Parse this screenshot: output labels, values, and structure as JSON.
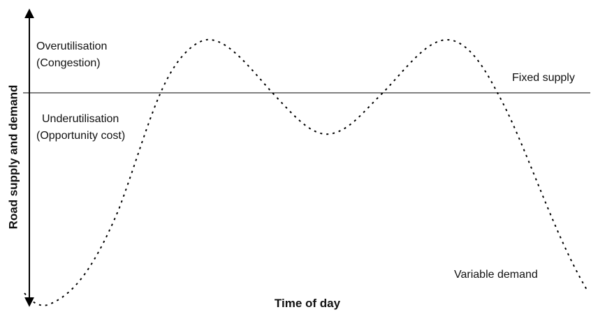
{
  "axes": {
    "y_label": "Road supply and demand",
    "x_label": "Time of day"
  },
  "regions": {
    "over": {
      "line1": "Overutilisation",
      "line2": "(Congestion)"
    },
    "under": {
      "line1": "Underutilisation",
      "line2": "(Opportunity cost)"
    }
  },
  "lines": {
    "fixed_supply": "Fixed supply",
    "variable_demand": "Variable demand"
  }
}
